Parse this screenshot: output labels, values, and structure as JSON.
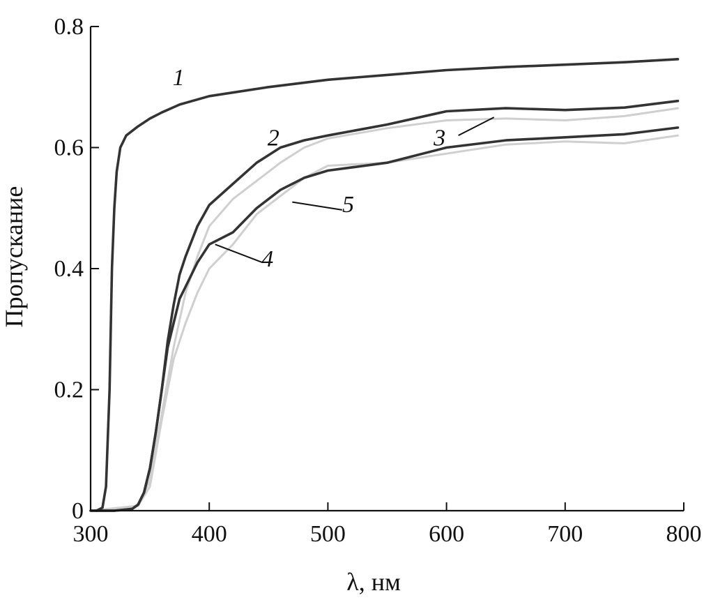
{
  "chart_data": {
    "type": "line",
    "title": "",
    "xlabel": "λ, нм",
    "ylabel": "Пропускание",
    "xlim": [
      300,
      800
    ],
    "ylim": [
      0,
      0.8
    ],
    "xticks": [
      "300",
      "400",
      "500",
      "600",
      "700",
      "800"
    ],
    "yticks": [
      "0",
      "0.2",
      "0.4",
      "0.6",
      "0.8"
    ],
    "grid": false,
    "legend": "none",
    "series": [
      {
        "label": "1",
        "color": "#333333",
        "x": [
          305,
          310,
          313,
          316,
          318,
          320,
          322,
          325,
          330,
          340,
          350,
          360,
          375,
          400,
          450,
          500,
          550,
          600,
          650,
          700,
          750,
          795
        ],
        "y": [
          0.0,
          0.005,
          0.04,
          0.2,
          0.4,
          0.5,
          0.56,
          0.6,
          0.62,
          0.635,
          0.648,
          0.658,
          0.671,
          0.685,
          0.7,
          0.712,
          0.72,
          0.728,
          0.733,
          0.737,
          0.741,
          0.746
        ]
      },
      {
        "label": "2",
        "color": "#333333",
        "x": [
          300,
          320,
          335,
          340,
          345,
          350,
          355,
          360,
          365,
          370,
          375,
          380,
          385,
          390,
          400,
          420,
          440,
          460,
          480,
          500,
          550,
          600,
          650,
          700,
          750,
          795
        ],
        "y": [
          0.0,
          0.0,
          0.003,
          0.01,
          0.03,
          0.07,
          0.13,
          0.2,
          0.28,
          0.34,
          0.39,
          0.42,
          0.445,
          0.47,
          0.505,
          0.54,
          0.575,
          0.6,
          0.612,
          0.62,
          0.638,
          0.66,
          0.665,
          0.662,
          0.666,
          0.677
        ]
      },
      {
        "label": "3",
        "color": "#cfcfcf",
        "x": [
          300,
          340,
          350,
          360,
          370,
          380,
          390,
          400,
          420,
          440,
          460,
          480,
          500,
          550,
          600,
          650,
          700,
          750,
          795
        ],
        "y": [
          0.0,
          0.008,
          0.05,
          0.16,
          0.27,
          0.36,
          0.42,
          0.47,
          0.515,
          0.545,
          0.575,
          0.6,
          0.615,
          0.632,
          0.645,
          0.648,
          0.645,
          0.652,
          0.665
        ]
      },
      {
        "label": "4",
        "color": "#333333",
        "x": [
          300,
          320,
          335,
          340,
          345,
          350,
          355,
          360,
          365,
          370,
          375,
          380,
          390,
          400,
          420,
          440,
          460,
          480,
          500,
          550,
          600,
          650,
          700,
          750,
          795
        ],
        "y": [
          0.0,
          0.0,
          0.003,
          0.01,
          0.03,
          0.07,
          0.13,
          0.2,
          0.27,
          0.31,
          0.35,
          0.37,
          0.41,
          0.44,
          0.46,
          0.5,
          0.53,
          0.55,
          0.562,
          0.575,
          0.6,
          0.612,
          0.617,
          0.622,
          0.633
        ]
      },
      {
        "label": "5",
        "color": "#cfcfcf",
        "x": [
          300,
          340,
          350,
          360,
          370,
          380,
          390,
          400,
          420,
          440,
          460,
          480,
          500,
          550,
          600,
          650,
          700,
          750,
          795
        ],
        "y": [
          0.0,
          0.008,
          0.04,
          0.15,
          0.25,
          0.31,
          0.36,
          0.4,
          0.44,
          0.49,
          0.52,
          0.55,
          0.57,
          0.575,
          0.59,
          0.605,
          0.61,
          0.607,
          0.62
        ]
      }
    ],
    "annotations": [
      {
        "text": "1",
        "x": 375,
        "y": 0.7
      },
      {
        "text": "2",
        "x": 455,
        "y": 0.6
      },
      {
        "text": "3",
        "x": 595,
        "y": 0.6
      },
      {
        "text": "4",
        "x": 450,
        "y": 0.4
      },
      {
        "text": "5",
        "x": 518,
        "y": 0.49
      }
    ]
  }
}
